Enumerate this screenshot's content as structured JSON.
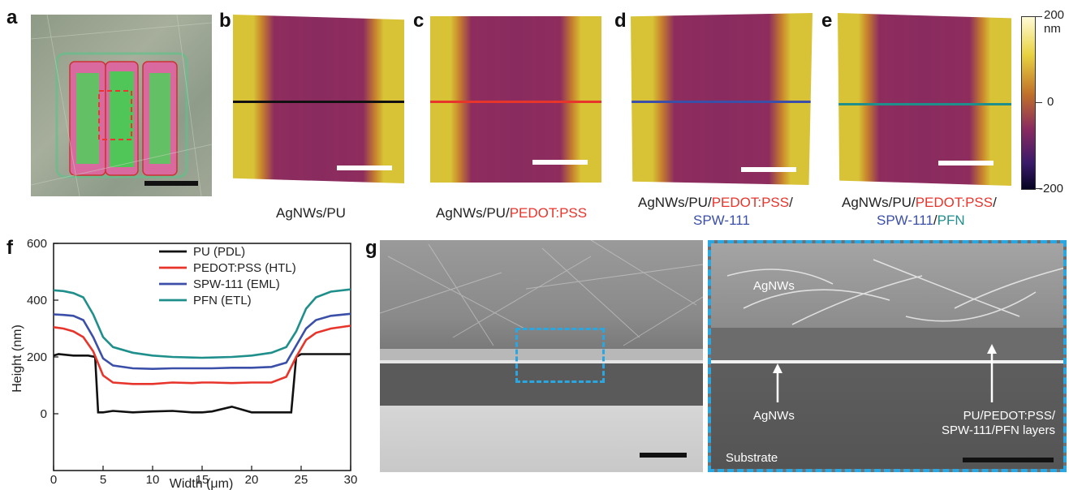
{
  "panels": {
    "a": "a",
    "b": "b",
    "c": "c",
    "d": "d",
    "e": "e",
    "f": "f",
    "g": "g"
  },
  "captions": {
    "b": [
      "AgNWs/PU"
    ],
    "c": [
      "AgNWs/PU/",
      "PEDOT:PSS"
    ],
    "d_line1": [
      "AgNWs/PU/",
      "PEDOT:PSS",
      "/"
    ],
    "d_line2": [
      "SPW-111"
    ],
    "e_line1": [
      "AgNWs/PU/",
      "PEDOT:PSS",
      "/"
    ],
    "e_line2": [
      "SPW-111",
      "/",
      "PFN"
    ]
  },
  "colorbar": {
    "max_label": "200",
    "unit": "nm",
    "mid_label": "0",
    "min_label": "-200"
  },
  "sem_labels": {
    "agnws_top": "AgNWs",
    "agnws_bottom": "AgNWs",
    "layers_line1": "PU/PEDOT:PSS/",
    "layers_line2": "SPW-111/PFN layers",
    "substrate": "Substrate"
  },
  "colors": {
    "pu": "#111111",
    "pedot": "#e8352c",
    "spw": "#3b4fa8",
    "pfn": "#1f8f8c",
    "inset_border": "#2aa7e0"
  },
  "chart_data": {
    "type": "line",
    "xlabel": "Width (μm)",
    "ylabel": "Height (nm)",
    "xlim": [
      0,
      30
    ],
    "ylim": [
      -200,
      600
    ],
    "xticks": [
      0,
      5,
      10,
      15,
      20,
      25,
      30
    ],
    "yticks": [
      0,
      200,
      400,
      600
    ],
    "legend_position": "top-right",
    "series": [
      {
        "name": "PU (PDL)",
        "color": "#111111",
        "x": [
          0,
          0.5,
          2,
          3.5,
          4.2,
          4.5,
          5,
          6,
          8,
          10,
          12,
          14,
          15,
          16,
          18,
          20,
          22,
          24,
          24.5,
          25,
          26,
          28,
          30
        ],
        "y": [
          205,
          210,
          205,
          205,
          200,
          5,
          5,
          10,
          5,
          8,
          10,
          5,
          5,
          8,
          25,
          5,
          5,
          5,
          200,
          210,
          210,
          210,
          210
        ]
      },
      {
        "name": "PEDOT:PSS (HTL)",
        "color": "#e8352c",
        "x": [
          0,
          1,
          2,
          3,
          4,
          5,
          6,
          8,
          10,
          12,
          14,
          15,
          16,
          18,
          20,
          22,
          23.5,
          24.5,
          25.5,
          26.5,
          28,
          30
        ],
        "y": [
          305,
          300,
          290,
          270,
          220,
          135,
          110,
          105,
          105,
          110,
          108,
          110,
          110,
          108,
          110,
          110,
          130,
          200,
          260,
          285,
          300,
          310
        ]
      },
      {
        "name": "SPW-111 (EML)",
        "color": "#3b4fa8",
        "x": [
          0,
          1,
          2,
          3,
          4,
          5,
          6,
          8,
          10,
          12,
          14,
          15,
          16,
          18,
          20,
          22,
          23.5,
          24.5,
          25.5,
          26.5,
          28,
          30
        ],
        "y": [
          350,
          348,
          345,
          330,
          270,
          195,
          170,
          160,
          158,
          160,
          160,
          160,
          160,
          162,
          162,
          165,
          180,
          240,
          300,
          330,
          345,
          352
        ]
      },
      {
        "name": "PFN (ETL)",
        "color": "#1f8f8c",
        "x": [
          0,
          1,
          2,
          3,
          4,
          5,
          6,
          8,
          10,
          12,
          14,
          15,
          16,
          18,
          20,
          22,
          23.5,
          24.5,
          25.5,
          26.5,
          28,
          30
        ],
        "y": [
          435,
          432,
          425,
          410,
          350,
          270,
          235,
          215,
          205,
          200,
          198,
          197,
          198,
          200,
          205,
          215,
          235,
          290,
          370,
          410,
          430,
          438
        ]
      }
    ]
  }
}
